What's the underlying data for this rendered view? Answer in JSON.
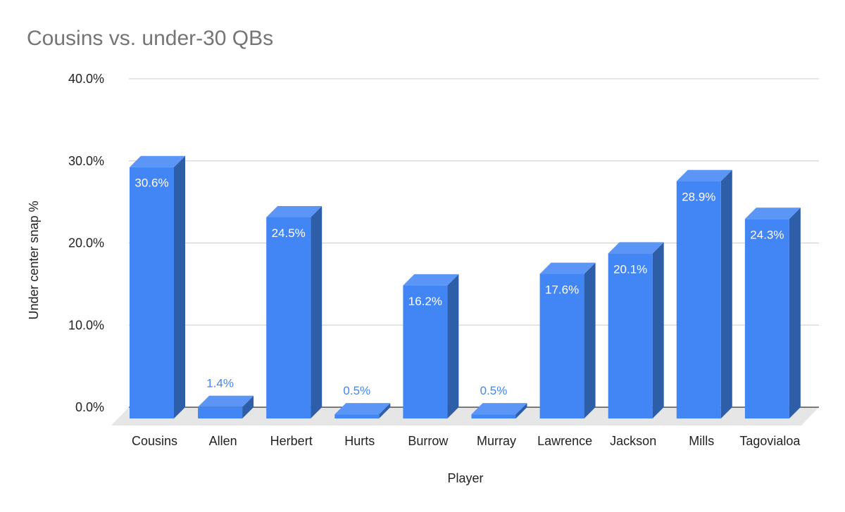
{
  "chart_data": {
    "type": "bar",
    "title": "Cousins vs. under-30 QBs",
    "xlabel": "Player",
    "ylabel": "Under center snap %",
    "categories": [
      "Cousins",
      "Allen",
      "Herbert",
      "Hurts",
      "Burrow",
      "Murray",
      "Lawrence",
      "Jackson",
      "Mills",
      "Tagovialoa"
    ],
    "values": [
      30.6,
      1.4,
      24.5,
      0.5,
      16.2,
      0.5,
      17.6,
      20.1,
      28.9,
      24.3
    ],
    "data_labels": [
      "30.6%",
      "1.4%",
      "24.5%",
      "0.5%",
      "16.2%",
      "0.5%",
      "17.6%",
      "20.1%",
      "28.9%",
      "24.3%"
    ],
    "ylim": [
      0,
      40
    ],
    "yticks": [
      0,
      10,
      20,
      30,
      40
    ],
    "ytick_labels": [
      "0.0%",
      "10.0%",
      "20.0%",
      "30.0%",
      "40.0%"
    ],
    "grid": true,
    "legend": "none",
    "style": "3d-column"
  },
  "colors": {
    "bar_front": "#4285f4",
    "bar_top": "#5b95f5",
    "bar_side": "#2f5ea8",
    "floor": "#e6e6e6",
    "grid": "#cccccc",
    "axis": "#333333",
    "label_inside": "#ffffff",
    "label_outside": "#4285f4"
  }
}
